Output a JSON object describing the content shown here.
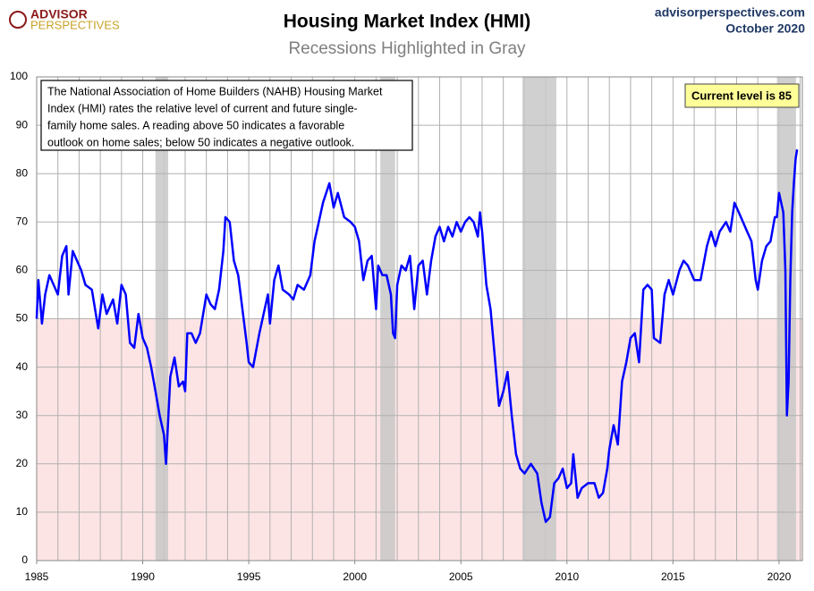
{
  "chart_data": {
    "type": "line",
    "title": "Housing Market Index (HMI)",
    "subtitle": "Recessions Highlighted in Gray",
    "logo": [
      "ADVISOR",
      "PERSPECTIVES"
    ],
    "source": "advisorperspectives.com",
    "date": "October 2020",
    "annotation": [
      "The National Association of Home Builders (NAHB) Housing Market",
      "Index (HMI) rates the relative level of current and future single-",
      "family home sales. A reading above 50 indicates a favorable",
      "outlook on home sales; below 50 indicates a negative outlook."
    ],
    "callout": "Current level is 85",
    "threshold": 50,
    "recessions": [
      [
        1990.6,
        1991.2
      ],
      [
        2001.2,
        2001.9
      ],
      [
        2007.9,
        2009.5
      ],
      [
        2019.9,
        2020.8
      ]
    ],
    "xlim": [
      1985,
      2021.1
    ],
    "ylim": [
      0,
      100
    ],
    "xticks": [
      1985,
      1990,
      1995,
      2000,
      2005,
      2010,
      2015,
      2020
    ],
    "yticks": [
      0,
      10,
      20,
      30,
      40,
      50,
      60,
      70,
      80,
      90,
      100
    ],
    "grid": true,
    "series": [
      {
        "name": "HMI",
        "color": "#0000ff",
        "x": [
          1985.0,
          1985.08,
          1985.25,
          1985.4,
          1985.6,
          1985.8,
          1986.0,
          1986.2,
          1986.4,
          1986.5,
          1986.7,
          1986.9,
          1987.1,
          1987.3,
          1987.6,
          1987.9,
          1988.1,
          1988.3,
          1988.6,
          1988.8,
          1989.0,
          1989.2,
          1989.4,
          1989.6,
          1989.8,
          1990.0,
          1990.2,
          1990.4,
          1990.6,
          1990.8,
          1991.0,
          1991.1,
          1991.3,
          1991.5,
          1991.7,
          1991.9,
          1992.0,
          1992.1,
          1992.3,
          1992.5,
          1992.7,
          1993.0,
          1993.2,
          1993.4,
          1993.6,
          1993.8,
          1993.9,
          1994.1,
          1994.3,
          1994.5,
          1994.7,
          1994.9,
          1995.0,
          1995.2,
          1995.5,
          1995.7,
          1995.9,
          1996.0,
          1996.2,
          1996.4,
          1996.6,
          1996.9,
          1997.1,
          1997.3,
          1997.6,
          1997.9,
          1998.1,
          1998.3,
          1998.5,
          1998.8,
          1999.0,
          1999.2,
          1999.5,
          1999.8,
          2000.0,
          2000.2,
          2000.4,
          2000.6,
          2000.8,
          2001.0,
          2001.1,
          2001.3,
          2001.5,
          2001.7,
          2001.8,
          2001.9,
          2002.0,
          2002.2,
          2002.4,
          2002.6,
          2002.8,
          2003.0,
          2003.2,
          2003.4,
          2003.6,
          2003.8,
          2004.0,
          2004.2,
          2004.4,
          2004.6,
          2004.8,
          2005.0,
          2005.2,
          2005.4,
          2005.6,
          2005.8,
          2005.9,
          2006.0,
          2006.2,
          2006.4,
          2006.6,
          2006.8,
          2007.0,
          2007.2,
          2007.4,
          2007.6,
          2007.8,
          2008.0,
          2008.3,
          2008.6,
          2008.8,
          2009.0,
          2009.2,
          2009.4,
          2009.6,
          2009.8,
          2010.0,
          2010.2,
          2010.3,
          2010.5,
          2010.7,
          2011.0,
          2011.3,
          2011.5,
          2011.7,
          2011.9,
          2012.0,
          2012.2,
          2012.4,
          2012.6,
          2012.8,
          2013.0,
          2013.2,
          2013.4,
          2013.6,
          2013.8,
          2014.0,
          2014.1,
          2014.4,
          2014.6,
          2014.8,
          2015.0,
          2015.3,
          2015.5,
          2015.7,
          2016.0,
          2016.3,
          2016.6,
          2016.8,
          2017.0,
          2017.2,
          2017.5,
          2017.7,
          2017.9,
          2018.1,
          2018.3,
          2018.5,
          2018.7,
          2018.9,
          2019.0,
          2019.2,
          2019.4,
          2019.6,
          2019.8,
          2019.9,
          2020.0,
          2020.2,
          2020.3,
          2020.37,
          2020.45,
          2020.53,
          2020.62,
          2020.7,
          2020.78,
          2020.85
        ],
        "values": [
          50,
          58,
          49,
          55,
          59,
          57,
          55,
          63,
          65,
          55,
          64,
          62,
          60,
          57,
          56,
          48,
          55,
          51,
          54,
          49,
          57,
          55,
          45,
          44,
          51,
          46,
          44,
          40,
          35,
          30,
          26,
          20,
          38,
          42,
          36,
          37,
          35,
          47,
          47,
          45,
          47,
          55,
          53,
          52,
          56,
          64,
          71,
          70,
          62,
          59,
          52,
          45,
          41,
          40,
          47,
          51,
          55,
          49,
          58,
          61,
          56,
          55,
          54,
          57,
          56,
          59,
          66,
          70,
          74,
          78,
          73,
          76,
          71,
          70,
          69,
          66,
          58,
          62,
          63,
          52,
          61,
          59,
          59,
          55,
          47,
          46,
          57,
          61,
          60,
          63,
          52,
          61,
          62,
          55,
          62,
          67,
          69,
          66,
          69,
          67,
          70,
          68,
          70,
          71,
          70,
          67,
          72,
          68,
          57,
          52,
          42,
          32,
          35,
          39,
          30,
          22,
          19,
          18,
          20,
          18,
          12,
          8,
          9,
          16,
          17,
          19,
          15,
          16,
          22,
          13,
          15,
          16,
          16,
          13,
          14,
          19,
          23,
          28,
          24,
          37,
          41,
          46,
          47,
          41,
          56,
          57,
          56,
          46,
          45,
          55,
          58,
          55,
          60,
          62,
          61,
          58,
          58,
          65,
          68,
          65,
          68,
          70,
          68,
          74,
          72,
          70,
          68,
          66,
          58,
          56,
          62,
          65,
          66,
          71,
          71,
          76,
          72,
          60,
          30,
          37,
          58,
          72,
          78,
          83,
          85
        ]
      }
    ]
  }
}
